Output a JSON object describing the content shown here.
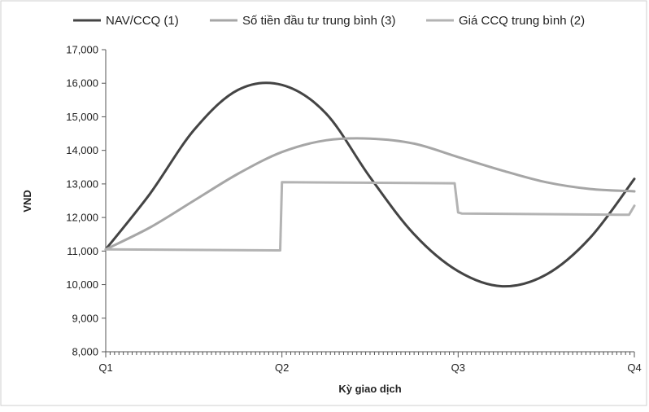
{
  "chart_data": {
    "type": "line",
    "xlabel": "Kỳ giao dịch",
    "ylabel": "VND",
    "ylim": [
      8000,
      17000
    ],
    "xlim": [
      0,
      3
    ],
    "x_tick_labels": [
      "Q1",
      "Q2",
      "Q3",
      "Q4"
    ],
    "y_ticks": [
      8000,
      9000,
      10000,
      11000,
      12000,
      13000,
      14000,
      15000,
      16000,
      17000
    ],
    "y_tick_labels": [
      "8,000",
      "9,000",
      "10,000",
      "11,000",
      "12,000",
      "13,000",
      "14,000",
      "15,000",
      "16,000",
      "17,000"
    ],
    "grid": false,
    "legend_position": "top",
    "series": [
      {
        "name": "NAV/CCQ (1)",
        "color": "#444444",
        "x": [
          0,
          0.25,
          0.5,
          0.75,
          1.0,
          1.25,
          1.5,
          1.75,
          2.0,
          2.25,
          2.5,
          2.75,
          3.0
        ],
        "values": [
          11050,
          12700,
          14600,
          15800,
          15950,
          15100,
          13200,
          11500,
          10400,
          9950,
          10300,
          11400,
          13150
        ]
      },
      {
        "name": "Số tiền đầu tư trung bình (3)",
        "color": "#a6a6a6",
        "x": [
          0,
          0.25,
          0.5,
          0.75,
          1.0,
          1.25,
          1.5,
          1.75,
          2.0,
          2.25,
          2.5,
          2.75,
          3.0
        ],
        "values": [
          11050,
          11700,
          12500,
          13300,
          13950,
          14300,
          14350,
          14200,
          13800,
          13400,
          13050,
          12850,
          12780
        ]
      },
      {
        "name": "Giá CCQ trung bình (2)",
        "color": "#b3b3b3",
        "x": [
          0,
          0.97,
          0.99,
          1.0,
          1.98,
          2.0,
          2.02,
          2.97,
          3.0
        ],
        "values": [
          11050,
          11020,
          11020,
          13050,
          13020,
          12150,
          12120,
          12080,
          12350
        ]
      }
    ]
  }
}
